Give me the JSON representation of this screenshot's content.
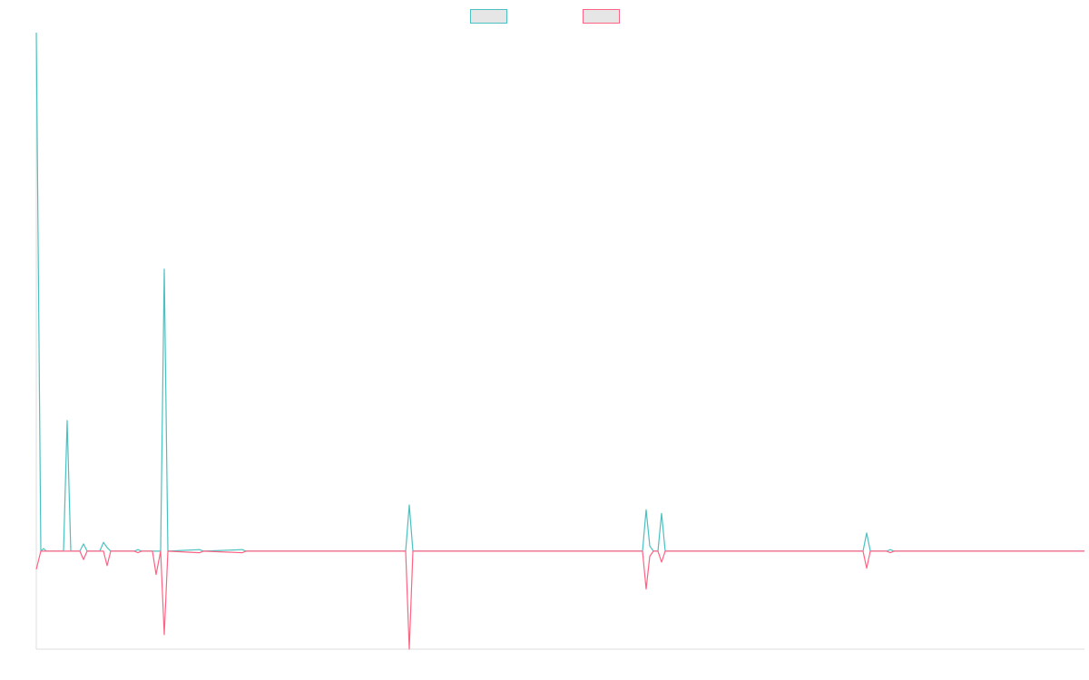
{
  "chart_data": {
    "type": "line",
    "x": [
      0,
      5,
      8,
      11,
      30,
      34,
      38,
      48,
      52,
      56,
      70,
      74,
      78,
      82,
      108,
      112,
      116,
      128,
      132,
      137,
      141,
      145,
      180,
      184,
      227,
      231,
      407,
      411,
      415,
      668,
      672,
      676,
      680,
      685,
      689,
      693,
      911,
      915,
      919,
      937,
      941,
      945,
      1155
    ],
    "xlim": [
      0,
      1155
    ],
    "ylim": [
      -18.9,
      100
    ],
    "series": [
      {
        "color": "#4bc0c0",
        "values": [
          100,
          0,
          0.5,
          0,
          0,
          25.2,
          0,
          0,
          1.4,
          0,
          0,
          1.7,
          0.7,
          0,
          0,
          0.3,
          0,
          0,
          0,
          0,
          54.4,
          0,
          0.3,
          0,
          0.3,
          0,
          0,
          8.9,
          0,
          0,
          8.0,
          1,
          0,
          0,
          7.3,
          0,
          0,
          3.5,
          0,
          0,
          0.3,
          0,
          0
        ]
      },
      {
        "color": "#ff6384",
        "values": [
          -3.5,
          0,
          0,
          0,
          0,
          0,
          0,
          0,
          -1.6,
          0,
          0,
          0,
          -2.8,
          0,
          0,
          -0.3,
          0,
          0,
          -4.5,
          0,
          -16.1,
          0,
          -0.3,
          0,
          -0.3,
          0,
          0,
          -18.9,
          0,
          0,
          -7.3,
          -1,
          0,
          0,
          -2.1,
          0,
          0,
          -3.3,
          0,
          0,
          -0.3,
          0,
          0
        ]
      }
    ],
    "legend": "top"
  }
}
